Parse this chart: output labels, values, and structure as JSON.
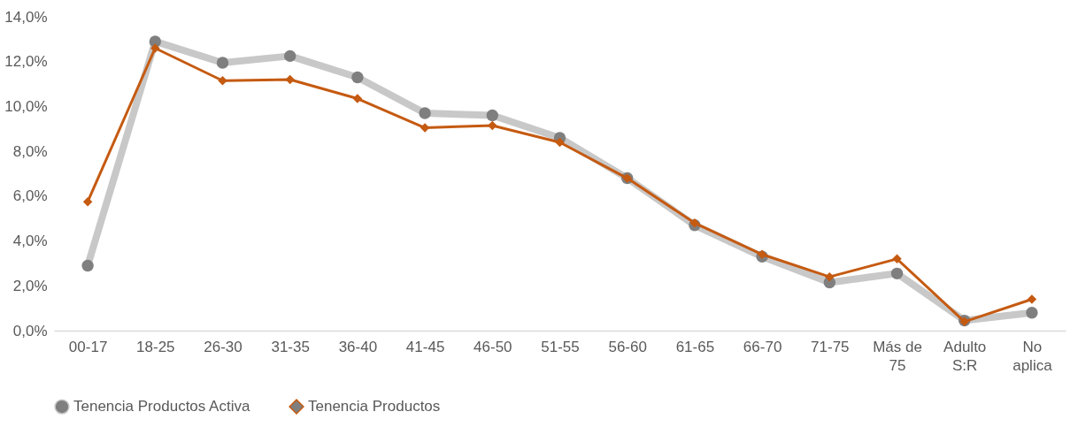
{
  "chart_data": {
    "type": "line",
    "categories": [
      "00-17",
      "18-25",
      "26-30",
      "31-35",
      "36-40",
      "41-45",
      "46-50",
      "51-55",
      "56-60",
      "61-65",
      "66-70",
      "71-75",
      "Más de 75",
      "Adulto S:R",
      "No aplica"
    ],
    "series": [
      {
        "name": "Tenencia Productos Activa",
        "color": "#c8c8c8",
        "marker": "circle",
        "values": [
          2.9,
          12.9,
          11.95,
          12.25,
          11.3,
          9.7,
          9.6,
          8.6,
          6.8,
          4.7,
          3.3,
          2.15,
          2.55,
          0.45,
          0.8
        ]
      },
      {
        "name": "Tenencia Productos",
        "color": "#c55a11",
        "marker": "diamond",
        "values": [
          5.75,
          12.6,
          11.15,
          11.2,
          10.35,
          9.05,
          9.15,
          8.4,
          6.8,
          4.8,
          3.4,
          2.4,
          3.2,
          0.4,
          1.4
        ]
      }
    ],
    "ylim": [
      0,
      14
    ],
    "yticks": [
      {
        "value": 0,
        "label": "0,0%"
      },
      {
        "value": 2,
        "label": "2,0%"
      },
      {
        "value": 4,
        "label": "4,0%"
      },
      {
        "value": 6,
        "label": "6,0%"
      },
      {
        "value": 8,
        "label": "8,0%"
      },
      {
        "value": 10,
        "label": "10,0%"
      },
      {
        "value": 12,
        "label": "12,0%"
      },
      {
        "value": 14,
        "label": "14,0%"
      }
    ],
    "grid": false,
    "legend": "bottom"
  }
}
